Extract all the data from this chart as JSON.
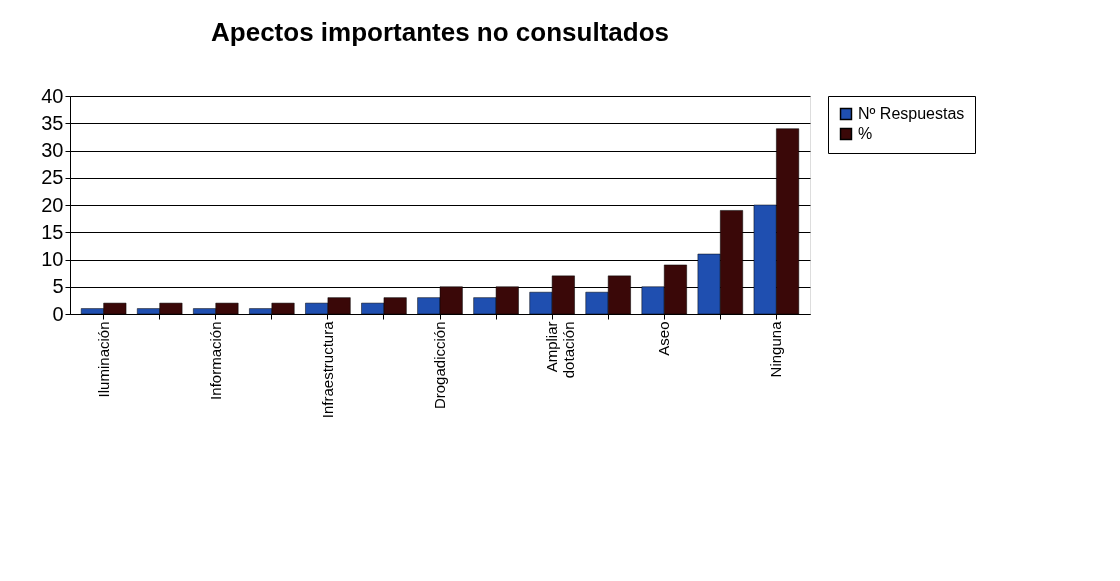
{
  "chart_data": {
    "type": "bar",
    "title": "Apectos importantes no consultados",
    "categories": [
      "Iluminación",
      null,
      "Información",
      null,
      "Infraestructura",
      null,
      "Drogadicción",
      null,
      "Ampliar dotación",
      null,
      "Aseo",
      null,
      "Ninguna"
    ],
    "series": [
      {
        "name": "Nº Respuestas",
        "color": "#1f4fb0",
        "values": [
          1,
          1,
          1,
          1,
          2,
          2,
          3,
          3,
          4,
          4,
          5,
          11,
          20
        ]
      },
      {
        "name": "%",
        "color": "#3a0808",
        "values": [
          2,
          2,
          2,
          2,
          3,
          3,
          5,
          5,
          7,
          7,
          9,
          19,
          34
        ]
      }
    ],
    "ylim": [
      0,
      40
    ],
    "yticks": [
      0,
      5,
      10,
      15,
      20,
      25,
      30,
      35,
      40
    ],
    "grid": "y",
    "legend": "right"
  }
}
